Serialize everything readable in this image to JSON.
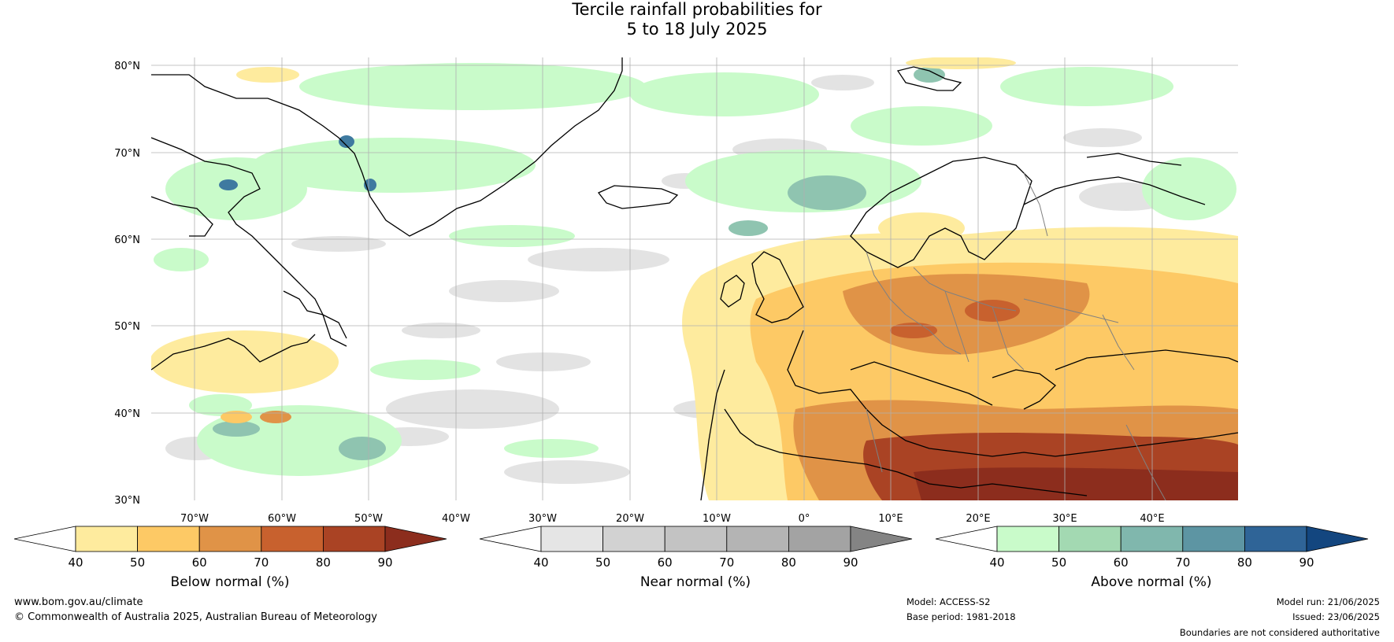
{
  "title": {
    "line1": "Tercile rainfall probabilities for",
    "line2": "5 to 18 July 2025"
  },
  "map": {
    "lat_labels": [
      "80°N",
      "70°N",
      "60°N",
      "50°N",
      "40°N",
      "30°N"
    ],
    "lon_labels": [
      "70°W",
      "60°W",
      "50°W",
      "40°W",
      "30°W",
      "20°W",
      "10°W",
      "0°",
      "10°E",
      "20°E",
      "30°E",
      "40°E"
    ]
  },
  "colorbars": [
    {
      "id": "below",
      "label": "Below normal (%)",
      "ticks": [
        "40",
        "50",
        "60",
        "70",
        "80",
        "90"
      ],
      "colors": [
        "#ffffff",
        "#feeb9e",
        "#fdc965",
        "#e09347",
        "#c8612e",
        "#aa4324",
        "#8c2d1d"
      ]
    },
    {
      "id": "near",
      "label": "Near normal (%)",
      "ticks": [
        "40",
        "50",
        "60",
        "70",
        "80",
        "90"
      ],
      "colors": [
        "#ffffff",
        "#e5e5e5",
        "#d2d2d2",
        "#c3c3c3",
        "#b4b4b4",
        "#a3a3a3",
        "#848484"
      ]
    },
    {
      "id": "above",
      "label": "Above normal (%)",
      "ticks": [
        "40",
        "50",
        "60",
        "70",
        "80",
        "90"
      ],
      "colors": [
        "#ffffff",
        "#c9fbca",
        "#a3d9b2",
        "#80b7ad",
        "#5d95a3",
        "#2f6497",
        "#13467f"
      ]
    }
  ],
  "footer": {
    "website": "www.bom.gov.au/climate",
    "copyright": "© Commonwealth of Australia 2025, Australian Bureau of Meteorology",
    "model": "Model: ACCESS-S2",
    "base_period": "Base period: 1981-2018",
    "model_run": "Model run: 21/06/2025",
    "issued": "Issued: 23/06/2025",
    "disclaimer": "Boundaries are not considered authoritative"
  }
}
